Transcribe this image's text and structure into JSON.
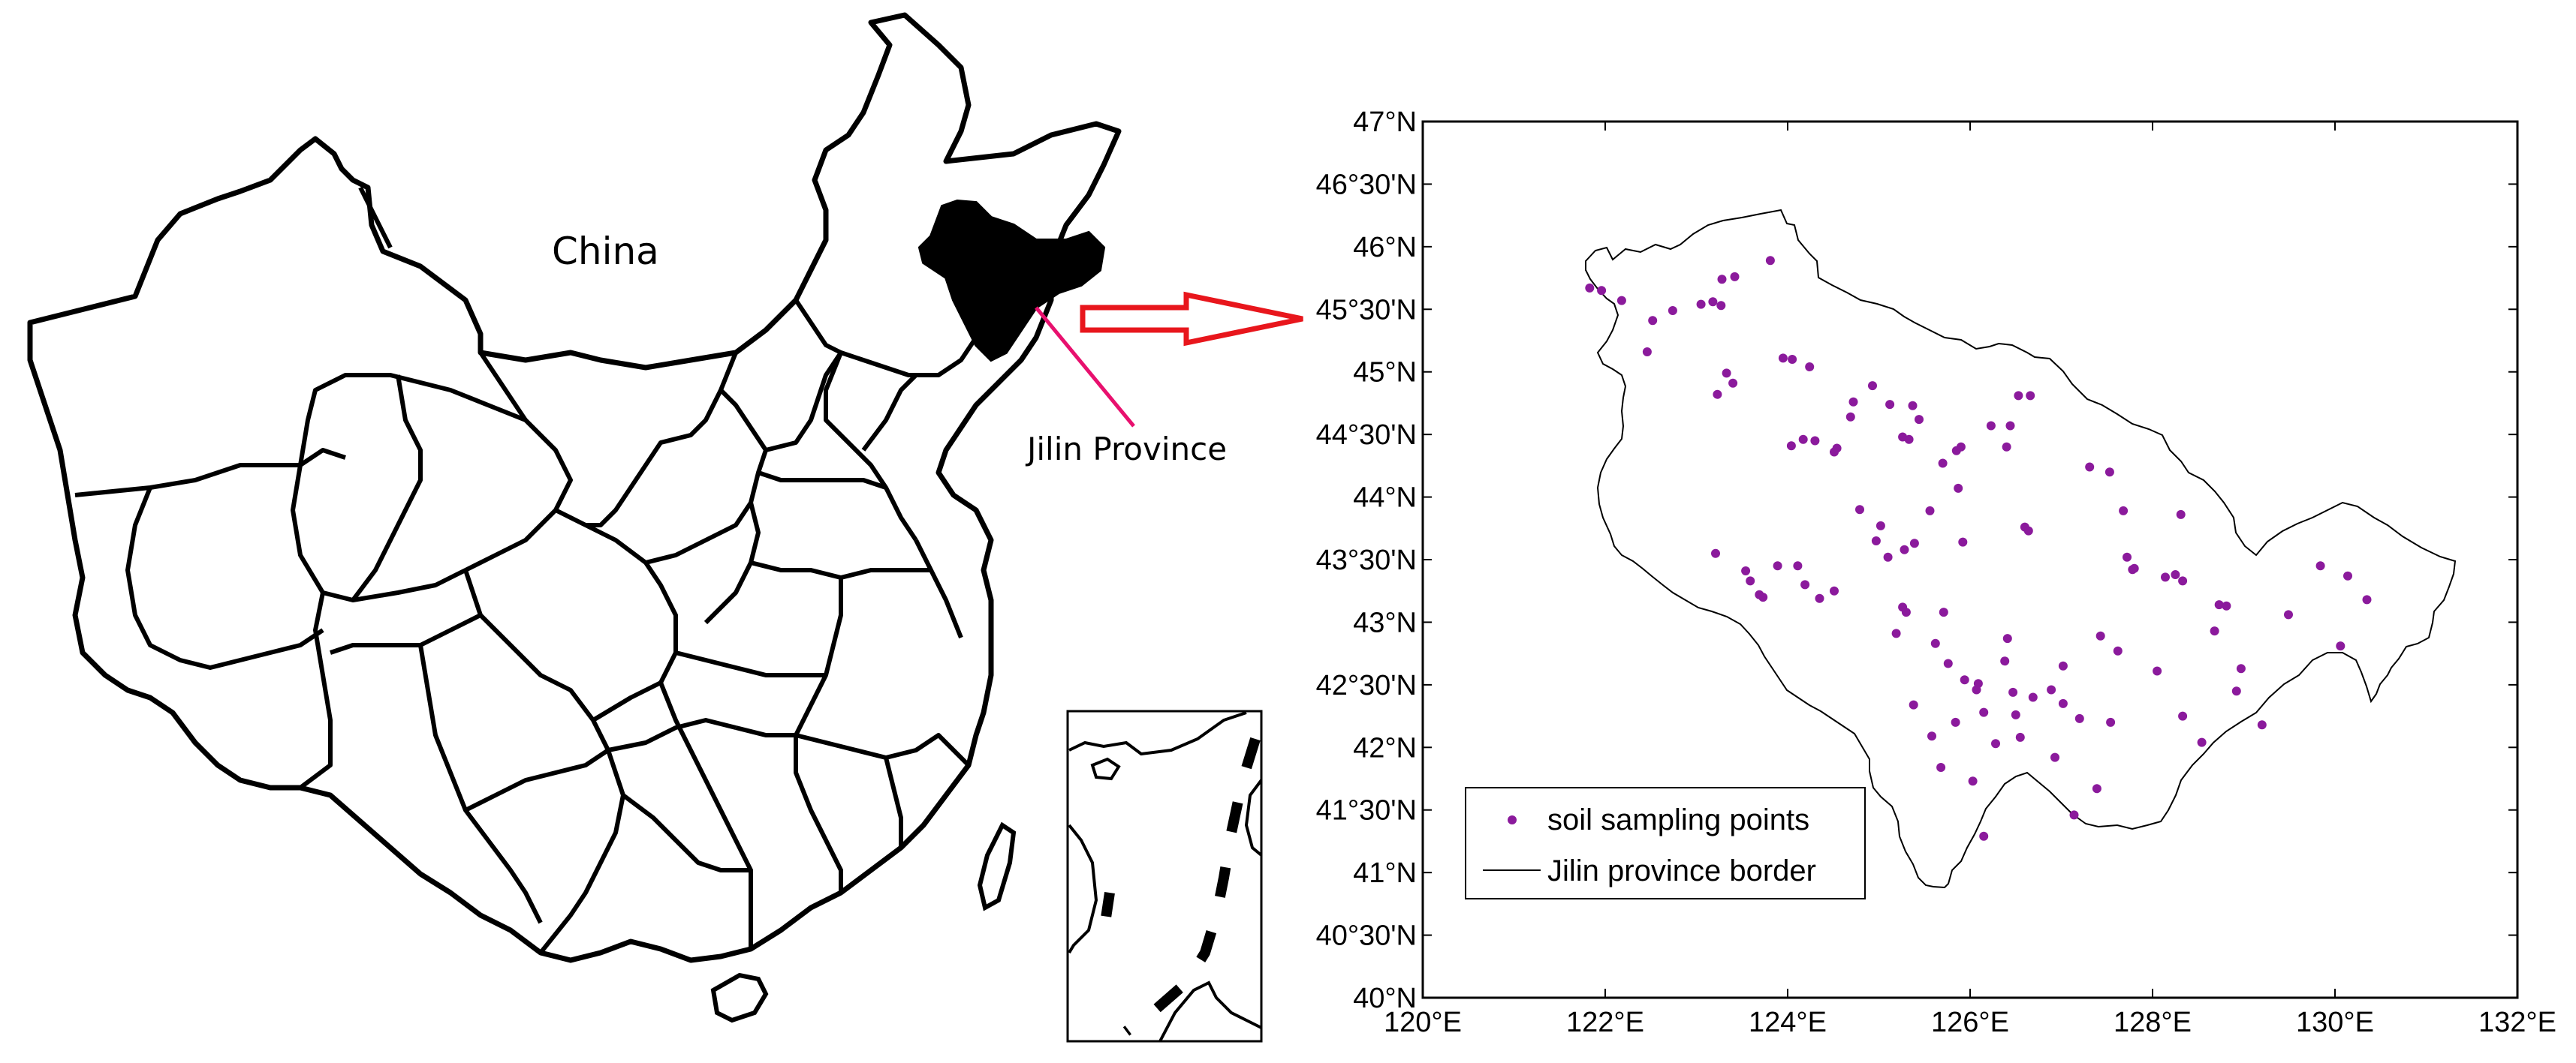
{
  "china_map": {
    "country_label": "China",
    "highlight_label": "Jilin Province",
    "highlight_color": "#000000",
    "pointer_color": "#e8106e",
    "arrow_color": "#e8161c"
  },
  "inset_map": {
    "description_free": true
  },
  "plot": {
    "legend": {
      "points_label": "soil sampling points",
      "border_label": "Jilin province border",
      "point_color": "#8b1a9c"
    }
  },
  "chart_data": {
    "type": "scatter",
    "xlim": [
      120,
      132
    ],
    "ylim": [
      40,
      47
    ],
    "x_tick_labels": [
      "120°E",
      "122°E",
      "124°E",
      "126°E",
      "128°E",
      "130°E",
      "132°E"
    ],
    "y_tick_labels": [
      "40°N",
      "40°30'N",
      "41°N",
      "41°30'N",
      "42°N",
      "42°30'N",
      "43°N",
      "43°30'N",
      "44°N",
      "44°30'N",
      "45°N",
      "45°30'N",
      "46°N",
      "46°30'N",
      "47°N"
    ],
    "x_ticks": [
      120,
      122,
      124,
      126,
      128,
      130,
      132
    ],
    "y_ticks": [
      40,
      40.5,
      41,
      41.5,
      42,
      42.5,
      43,
      43.5,
      44,
      44.5,
      45,
      45.5,
      46,
      46.5,
      47
    ],
    "series": [
      {
        "name": "soil sampling points",
        "points": [
          [
            121.83,
            45.67
          ],
          [
            121.96,
            45.65
          ],
          [
            122.18,
            45.57
          ],
          [
            122.52,
            45.41
          ],
          [
            122.74,
            45.49
          ],
          [
            122.46,
            45.16
          ],
          [
            123.05,
            45.54
          ],
          [
            123.18,
            45.56
          ],
          [
            123.28,
            45.74
          ],
          [
            123.42,
            45.76
          ],
          [
            123.81,
            45.89
          ],
          [
            123.27,
            45.53
          ],
          [
            123.23,
            44.82
          ],
          [
            123.4,
            44.91
          ],
          [
            123.33,
            44.99
          ],
          [
            123.95,
            45.11
          ],
          [
            124.05,
            45.1
          ],
          [
            124.24,
            45.04
          ],
          [
            124.04,
            44.41
          ],
          [
            124.17,
            44.46
          ],
          [
            124.3,
            44.45
          ],
          [
            124.54,
            44.39
          ],
          [
            124.51,
            44.36
          ],
          [
            124.69,
            44.64
          ],
          [
            124.93,
            44.89
          ],
          [
            125.12,
            44.74
          ],
          [
            125.37,
            44.73
          ],
          [
            125.44,
            44.62
          ],
          [
            125.26,
            44.48
          ],
          [
            125.33,
            44.46
          ],
          [
            124.79,
            43.9
          ],
          [
            124.72,
            44.76
          ],
          [
            125.02,
            43.77
          ],
          [
            124.97,
            43.65
          ],
          [
            125.28,
            43.58
          ],
          [
            125.39,
            43.63
          ],
          [
            125.85,
            44.37
          ],
          [
            125.9,
            44.4
          ],
          [
            125.7,
            44.27
          ],
          [
            125.87,
            44.07
          ],
          [
            126.23,
            44.57
          ],
          [
            126.44,
            44.57
          ],
          [
            126.53,
            44.81
          ],
          [
            126.66,
            44.81
          ],
          [
            126.4,
            44.4
          ],
          [
            126.6,
            43.76
          ],
          [
            126.64,
            43.73
          ],
          [
            127.31,
            44.24
          ],
          [
            127.53,
            44.2
          ],
          [
            127.68,
            43.89
          ],
          [
            127.72,
            43.52
          ],
          [
            127.78,
            43.42
          ],
          [
            127.8,
            43.43
          ],
          [
            128.14,
            43.36
          ],
          [
            128.25,
            43.38
          ],
          [
            128.33,
            43.33
          ],
          [
            128.31,
            43.86
          ],
          [
            128.73,
            43.14
          ],
          [
            128.81,
            43.13
          ],
          [
            128.68,
            42.93
          ],
          [
            128.97,
            42.63
          ],
          [
            129.49,
            43.06
          ],
          [
            129.84,
            43.45
          ],
          [
            130.14,
            43.37
          ],
          [
            130.35,
            43.18
          ],
          [
            130.06,
            42.81
          ],
          [
            123.21,
            43.55
          ],
          [
            123.54,
            43.41
          ],
          [
            123.59,
            43.33
          ],
          [
            123.69,
            43.22
          ],
          [
            123.73,
            43.2
          ],
          [
            123.89,
            43.45
          ],
          [
            124.11,
            43.45
          ],
          [
            124.19,
            43.3
          ],
          [
            124.35,
            43.19
          ],
          [
            124.51,
            43.25
          ],
          [
            125.26,
            43.12
          ],
          [
            125.3,
            43.08
          ],
          [
            125.19,
            42.91
          ],
          [
            125.71,
            43.08
          ],
          [
            125.62,
            42.83
          ],
          [
            125.76,
            42.67
          ],
          [
            125.94,
            42.54
          ],
          [
            126.07,
            42.46
          ],
          [
            126.38,
            42.69
          ],
          [
            126.41,
            42.87
          ],
          [
            126.09,
            42.51
          ],
          [
            126.15,
            42.28
          ],
          [
            126.47,
            42.44
          ],
          [
            126.5,
            42.26
          ],
          [
            126.69,
            42.4
          ],
          [
            126.89,
            42.46
          ],
          [
            127.02,
            42.35
          ],
          [
            127.2,
            42.23
          ],
          [
            127.54,
            42.2
          ],
          [
            127.39,
            41.67
          ],
          [
            127.14,
            41.46
          ],
          [
            126.93,
            41.92
          ],
          [
            126.15,
            41.29
          ],
          [
            126.03,
            41.73
          ],
          [
            125.68,
            41.84
          ],
          [
            125.58,
            42.09
          ],
          [
            125.38,
            42.34
          ],
          [
            125.84,
            42.2
          ],
          [
            126.28,
            42.03
          ],
          [
            126.55,
            42.08
          ],
          [
            127.02,
            42.65
          ],
          [
            127.43,
            42.89
          ],
          [
            127.62,
            42.77
          ],
          [
            128.05,
            42.61
          ],
          [
            128.33,
            42.25
          ],
          [
            128.54,
            42.04
          ],
          [
            128.92,
            42.45
          ],
          [
            129.2,
            42.18
          ],
          [
            125.56,
            43.89
          ],
          [
            125.92,
            43.64
          ],
          [
            125.1,
            43.52
          ]
        ]
      }
    ]
  }
}
